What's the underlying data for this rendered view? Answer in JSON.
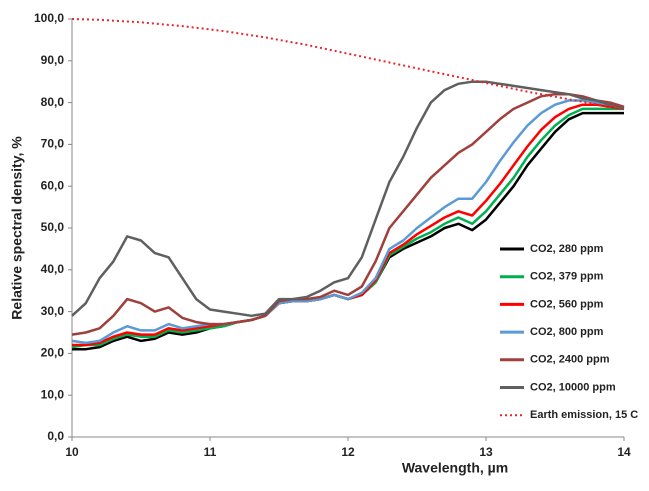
{
  "chart_data": {
    "type": "line",
    "xlabel": "Wavelength, µm",
    "ylabel": "Relative spectral density, %",
    "x": [
      10.0,
      10.1,
      10.2,
      10.3,
      10.4,
      10.5,
      10.6,
      10.7,
      10.8,
      10.9,
      11.0,
      11.1,
      11.2,
      11.3,
      11.4,
      11.5,
      11.6,
      11.7,
      11.8,
      11.9,
      12.0,
      12.1,
      12.2,
      12.3,
      12.4,
      12.5,
      12.6,
      12.7,
      12.8,
      12.9,
      13.0,
      13.1,
      13.2,
      13.3,
      13.4,
      13.5,
      13.6,
      13.7,
      13.8,
      13.9,
      14.0
    ],
    "xlim": [
      10,
      14
    ],
    "xticks": [
      10,
      11,
      12,
      13,
      14
    ],
    "ylim": [
      0,
      100
    ],
    "yticks": [
      {
        "value": 0,
        "label": "0,0"
      },
      {
        "value": 10,
        "label": "10,0"
      },
      {
        "value": 20,
        "label": "20,0"
      },
      {
        "value": 30,
        "label": "30,0"
      },
      {
        "value": 40,
        "label": "40,0"
      },
      {
        "value": 50,
        "label": "50,0"
      },
      {
        "value": 60,
        "label": "60,0"
      },
      {
        "value": 70,
        "label": "70,0"
      },
      {
        "value": 80,
        "label": "80,0"
      },
      {
        "value": 90,
        "label": "90,0"
      },
      {
        "value": 100,
        "label": "100,0"
      }
    ],
    "legend": "right",
    "series": [
      {
        "name": "CO2, 280 ppm",
        "color": "#000000",
        "dash": "solid",
        "values": [
          21,
          21,
          21.5,
          23,
          24,
          23,
          23.5,
          25,
          24.5,
          25,
          26,
          26.5,
          27.5,
          28,
          29,
          32,
          32.5,
          32.5,
          33,
          34,
          33,
          34,
          37,
          43,
          45,
          46.5,
          48,
          50,
          51,
          49.5,
          52,
          56,
          60,
          65,
          69,
          73,
          76,
          77.5,
          77.5,
          77.5,
          77.5
        ]
      },
      {
        "name": "CO2, 379 ppm",
        "color": "#00b050",
        "dash": "solid",
        "values": [
          21.5,
          22,
          22,
          23.5,
          24.5,
          24,
          24,
          25.5,
          25,
          25.5,
          26,
          26.5,
          27.5,
          28,
          29,
          32,
          32.5,
          32.5,
          33,
          34,
          33,
          34,
          37,
          43.5,
          45.5,
          47.5,
          49,
          51,
          52.5,
          51,
          54,
          58,
          62,
          67,
          71,
          74.5,
          77,
          78.5,
          78.5,
          78.5,
          78.5
        ]
      },
      {
        "name": "CO2, 560 ppm",
        "color": "#ff0000",
        "dash": "solid",
        "values": [
          22,
          22,
          22.5,
          24,
          25,
          24.5,
          24.5,
          26,
          25.5,
          26,
          26.5,
          27,
          27.5,
          28,
          29,
          32,
          32.5,
          32.5,
          33,
          34,
          33,
          34,
          37.5,
          44,
          46,
          48.5,
          50.5,
          52.5,
          54,
          53,
          56.5,
          60.5,
          65,
          69.5,
          73.5,
          76.5,
          78.5,
          79.5,
          79.5,
          79,
          78.5
        ]
      },
      {
        "name": "CO2, 800 ppm",
        "color": "#5b9bd5",
        "dash": "solid",
        "values": [
          23,
          22.5,
          23,
          25,
          26.5,
          25.5,
          25.5,
          27,
          26,
          26.5,
          27,
          27,
          27.5,
          28,
          29,
          32,
          32.5,
          32.5,
          33,
          34,
          33,
          34.5,
          38,
          45,
          47,
          50,
          52.5,
          55,
          57,
          57,
          61,
          66,
          70.5,
          74.5,
          77.5,
          79.5,
          80.5,
          80.5,
          80,
          79.5,
          79
        ]
      },
      {
        "name": "CO2, 2400 ppm",
        "color": "#a0403c",
        "dash": "solid",
        "values": [
          24.5,
          25,
          26,
          29,
          33,
          32,
          30,
          31,
          28.5,
          27.5,
          27,
          27,
          27.5,
          28,
          29,
          32.5,
          33,
          33,
          33.5,
          35,
          34,
          36,
          42,
          50,
          54,
          58,
          62,
          65,
          68,
          70,
          73,
          76,
          78.5,
          80,
          81.5,
          82,
          82,
          81.5,
          80.5,
          80,
          79
        ]
      },
      {
        "name": "CO2, 10000 ppm",
        "color": "#5f5f5f",
        "dash": "solid",
        "values": [
          29,
          32,
          38,
          42,
          48,
          47,
          44,
          43,
          38,
          33,
          30.5,
          30,
          29.5,
          29,
          29.5,
          33,
          33,
          33.5,
          35,
          37,
          38,
          43,
          52,
          61,
          67,
          74,
          80,
          83,
          84.5,
          85,
          85,
          84.5,
          84,
          83.5,
          83,
          82.5,
          82,
          81,
          80.5,
          79.5,
          78.5
        ]
      },
      {
        "name": "Earth emission, 15 C",
        "color": "#e8262a",
        "dash": "dotted",
        "values": [
          100,
          99.9,
          99.8,
          99.6,
          99.4,
          99.2,
          98.9,
          98.6,
          98.3,
          97.9,
          97.5,
          97.1,
          96.6,
          96.1,
          95.6,
          95.0,
          94.4,
          93.8,
          93.1,
          92.4,
          91.7,
          91.0,
          90.3,
          89.6,
          88.9,
          88.2,
          87.5,
          86.8,
          86.1,
          85.4,
          84.7,
          84.0,
          83.3,
          82.6,
          82.0,
          81.4,
          80.8,
          80.2,
          79.6,
          79.1,
          78.6
        ]
      }
    ]
  }
}
